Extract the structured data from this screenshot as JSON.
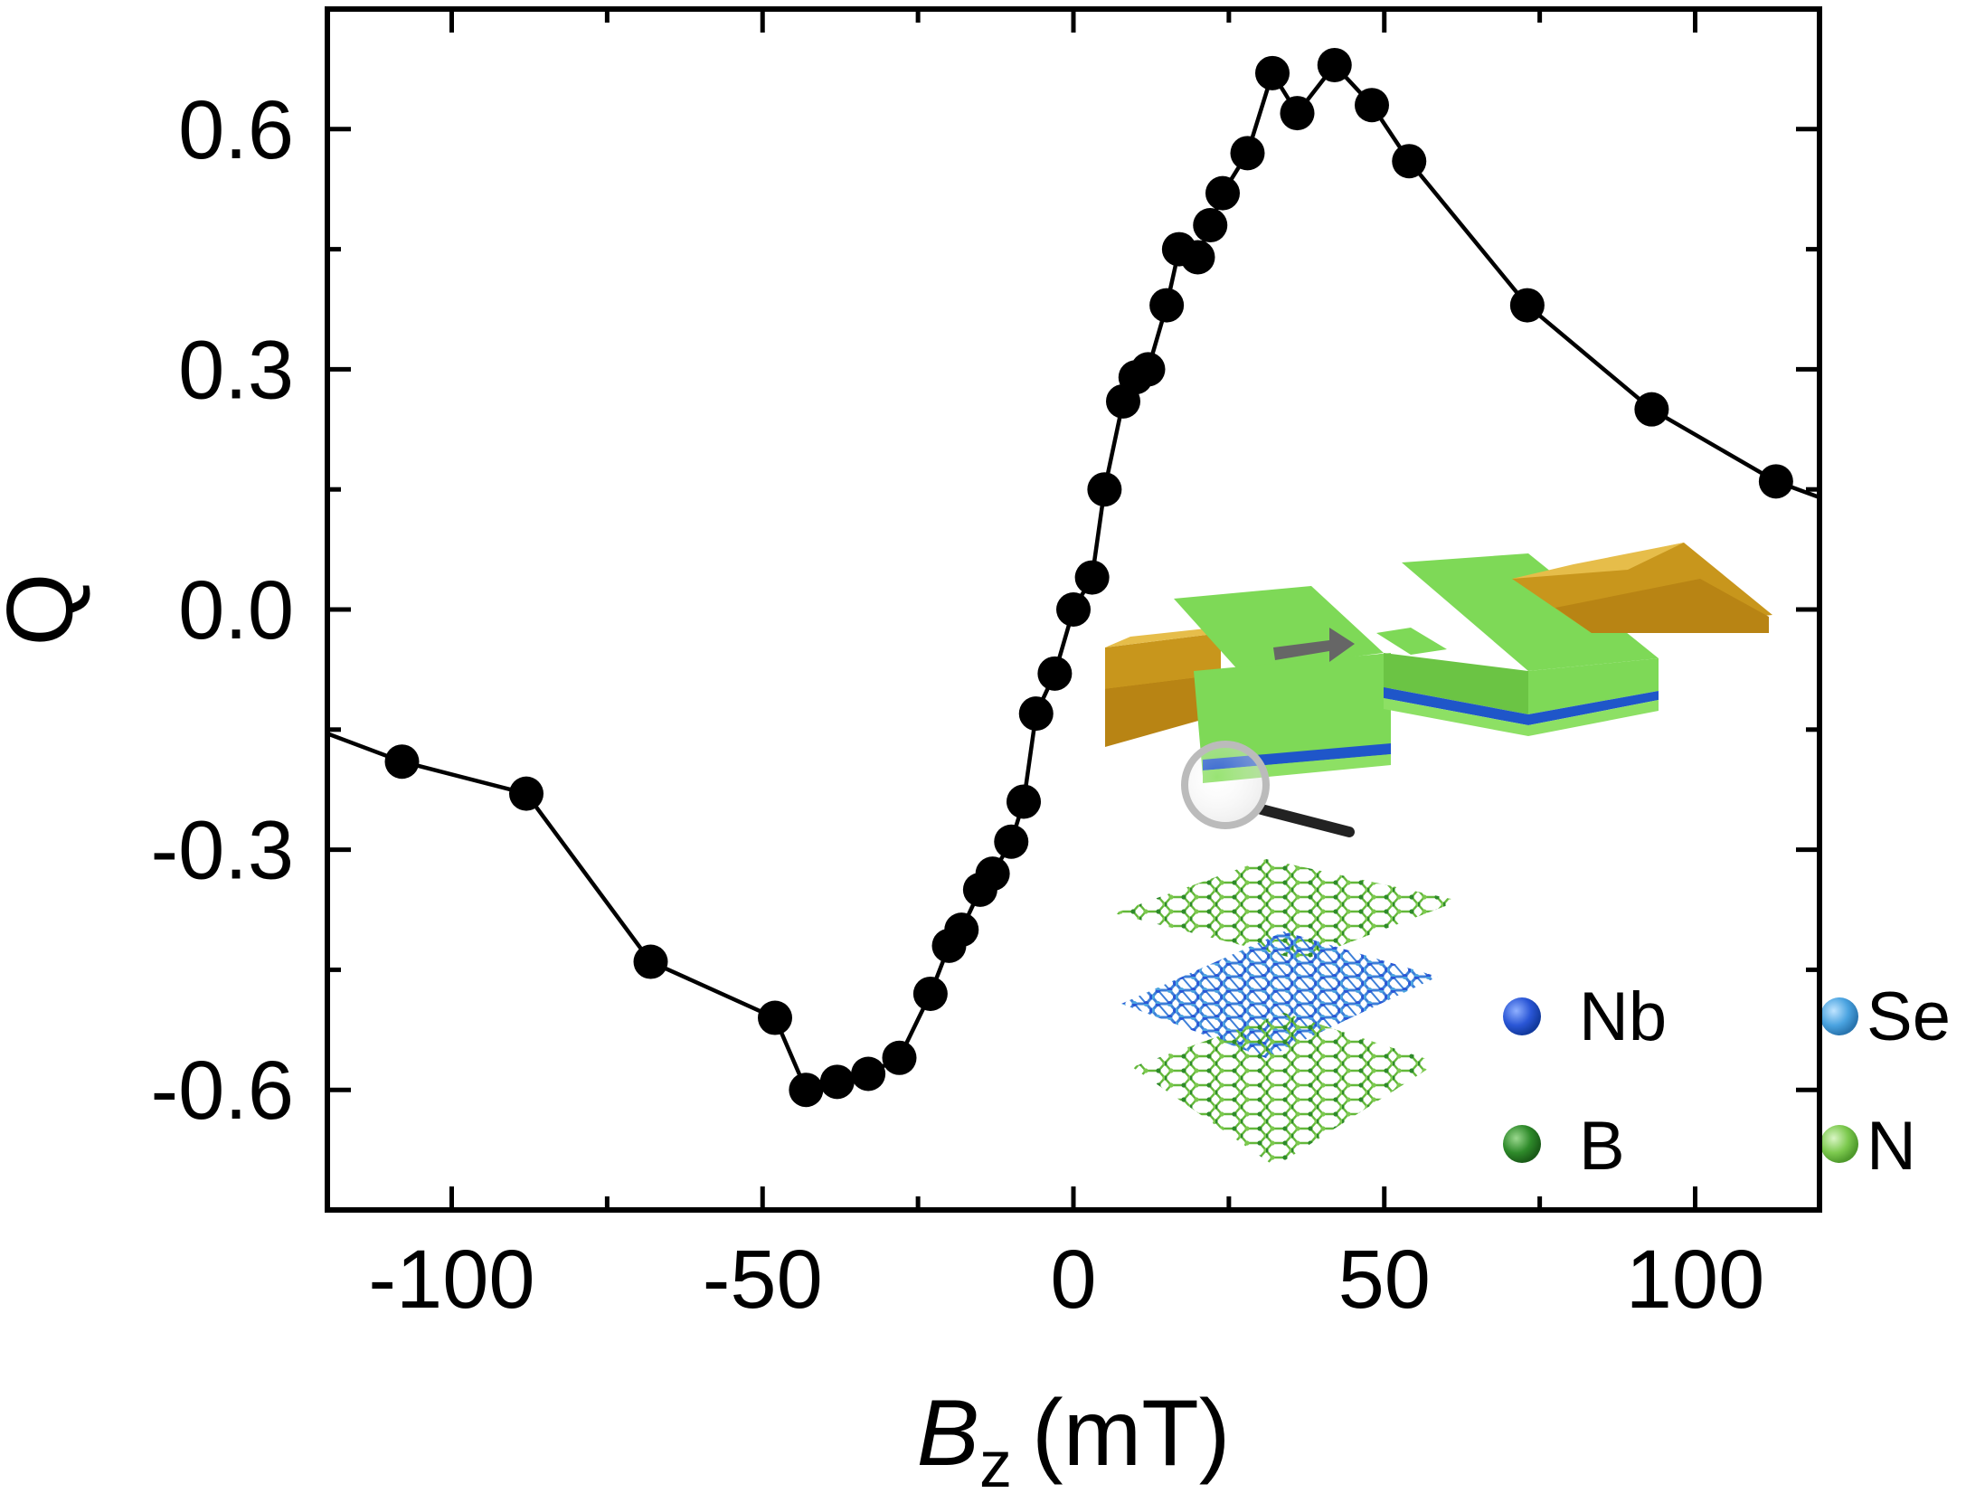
{
  "chart_data": {
    "type": "line",
    "title": "",
    "xlabel": "B",
    "xlabel_sub": "z",
    "xlabel_unit": "(mT)",
    "ylabel": "Q",
    "xlim": [
      -120,
      120
    ],
    "ylim": [
      -0.75,
      0.75
    ],
    "xticks": [
      -100,
      -50,
      0,
      50,
      100
    ],
    "xtick_labels": [
      "-100",
      "-50",
      "0",
      "50",
      "100"
    ],
    "yticks": [
      -0.6,
      -0.3,
      0.0,
      0.3,
      0.6
    ],
    "ytick_labels": [
      "-0.6",
      "-0.3",
      "0.0",
      "0.3",
      "0.6"
    ],
    "series": [
      {
        "name": "Q",
        "color": "#000000",
        "marker": "circle",
        "line_extends_to_axes": true,
        "x": [
          -108,
          -88,
          -68,
          -48,
          -43,
          -38,
          -33,
          -28,
          -23,
          -20,
          -18,
          -15,
          -13,
          -10,
          -8,
          -6,
          -3,
          0,
          3,
          5,
          8,
          10,
          12,
          15,
          17,
          20,
          22,
          24,
          28,
          32,
          36,
          42,
          48,
          54,
          73,
          93,
          113
        ],
        "y": [
          -0.19,
          -0.23,
          -0.44,
          -0.51,
          -0.6,
          -0.59,
          -0.58,
          -0.56,
          -0.48,
          -0.42,
          -0.4,
          -0.35,
          -0.33,
          -0.29,
          -0.24,
          -0.13,
          -0.08,
          0.0,
          0.04,
          0.15,
          0.26,
          0.29,
          0.3,
          0.38,
          0.45,
          0.44,
          0.48,
          0.52,
          0.57,
          0.67,
          0.62,
          0.68,
          0.63,
          0.56,
          0.38,
          0.25,
          0.16
        ],
        "line_start": [
          -120,
          -0.155
        ],
        "line_end": [
          120,
          0.14
        ]
      }
    ],
    "inset": {
      "description_labels": [
        "Nb",
        "Se",
        "B",
        "N"
      ],
      "legend": [
        {
          "label": "Nb",
          "color": "#2a56d6"
        },
        {
          "label": "Se",
          "color": "#4aa3e0"
        },
        {
          "label": "B",
          "color": "#2e8a2a"
        },
        {
          "label": "N",
          "color": "#7cc94e"
        }
      ]
    },
    "colors": {
      "device_green": "#7ed957",
      "device_blue": "#1f56c9",
      "contact_gold": "#c8961c",
      "arrow_gray": "#666666"
    }
  }
}
